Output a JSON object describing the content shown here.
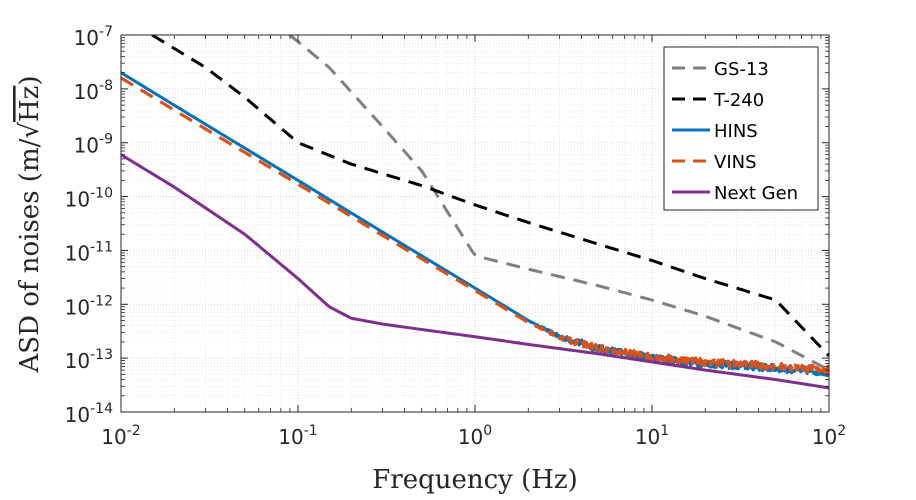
{
  "chart_data": {
    "type": "line",
    "xscale": "log",
    "yscale": "log",
    "xlim": [
      0.01,
      100
    ],
    "ylim": [
      1e-14,
      1e-07
    ],
    "grid": true,
    "xlabel": "Frequency (Hz)",
    "ylabel": "ASD of noises (m/√Hz)",
    "ylabel_parts": {
      "prefix": "ASD of noises (m/",
      "radical": "√",
      "radicand": "Hz",
      "suffix": ")"
    },
    "x_ticks": [
      {
        "base": "10",
        "exp": "-2",
        "value": 0.01
      },
      {
        "base": "10",
        "exp": "-1",
        "value": 0.1
      },
      {
        "base": "10",
        "exp": "0",
        "value": 1
      },
      {
        "base": "10",
        "exp": "1",
        "value": 10
      },
      {
        "base": "10",
        "exp": "2",
        "value": 100
      }
    ],
    "y_ticks": [
      {
        "base": "10",
        "exp": "-14",
        "value": 1e-14
      },
      {
        "base": "10",
        "exp": "-13",
        "value": 1e-13
      },
      {
        "base": "10",
        "exp": "-12",
        "value": 1e-12
      },
      {
        "base": "10",
        "exp": "-11",
        "value": 1e-11
      },
      {
        "base": "10",
        "exp": "-10",
        "value": 1e-10
      },
      {
        "base": "10",
        "exp": "-9",
        "value": 1e-09
      },
      {
        "base": "10",
        "exp": "-8",
        "value": 1e-08
      },
      {
        "base": "10",
        "exp": "-7",
        "value": 1e-07
      }
    ],
    "legend_position": "top-right",
    "series": [
      {
        "name": "GS-13",
        "color": "#808080",
        "style": "dashed",
        "x": [
          0.09,
          0.15,
          0.3,
          0.5,
          1.0,
          2.0,
          5.0,
          10,
          20,
          50,
          100
        ],
        "y": [
          1e-07,
          2.5e-08,
          2e-09,
          3e-10,
          8e-12,
          4.5e-12,
          2.2e-12,
          1.2e-12,
          6e-13,
          2e-13,
          6e-14
        ]
      },
      {
        "name": "T-240",
        "color": "#000000",
        "style": "dashed",
        "x": [
          0.015,
          0.03,
          0.05,
          0.1,
          0.2,
          0.5,
          1.0,
          2.0,
          5.0,
          10,
          20,
          50,
          100
        ],
        "y": [
          1e-07,
          2.5e-08,
          7e-09,
          1e-09,
          4e-10,
          1.6e-10,
          7e-11,
          3.3e-11,
          1.3e-11,
          6.5e-12,
          3e-12,
          1.2e-12,
          1.1e-13
        ]
      },
      {
        "name": "HINS",
        "color": "#0072BD",
        "style": "solid",
        "noisy": true,
        "x": [
          0.01,
          0.03,
          0.1,
          0.3,
          1.0,
          2.0,
          3.0,
          5.0,
          10,
          20,
          50,
          100
        ],
        "y": [
          2e-08,
          2.2e-09,
          2e-10,
          2.2e-11,
          2e-12,
          5e-13,
          2.5e-13,
          1.5e-13,
          1e-13,
          8e-14,
          6.5e-14,
          5.5e-14
        ]
      },
      {
        "name": "VINS",
        "color": "#D95319",
        "style": "dashed",
        "noisy": true,
        "x": [
          0.01,
          0.03,
          0.1,
          0.3,
          1.0,
          2.0,
          3.0,
          5.0,
          10,
          20,
          50,
          100
        ],
        "y": [
          1.6e-08,
          1.8e-09,
          1.7e-10,
          1.9e-11,
          1.8e-12,
          4.6e-13,
          2.4e-13,
          1.5e-13,
          1.05e-13,
          8.5e-14,
          7e-14,
          6e-14
        ]
      },
      {
        "name": "Next Gen",
        "color": "#7E2F8E",
        "style": "solid",
        "x": [
          0.01,
          0.02,
          0.05,
          0.1,
          0.15,
          0.2,
          0.3,
          0.5,
          1.0,
          2.0,
          5.0,
          10,
          20,
          50,
          100
        ],
        "y": [
          6e-10,
          1.5e-10,
          2e-11,
          3e-12,
          9e-13,
          5.5e-13,
          4.3e-13,
          3.4e-13,
          2.5e-13,
          1.8e-13,
          1.2e-13,
          8.5e-14,
          6e-14,
          4e-14,
          2.8e-14
        ]
      }
    ]
  }
}
